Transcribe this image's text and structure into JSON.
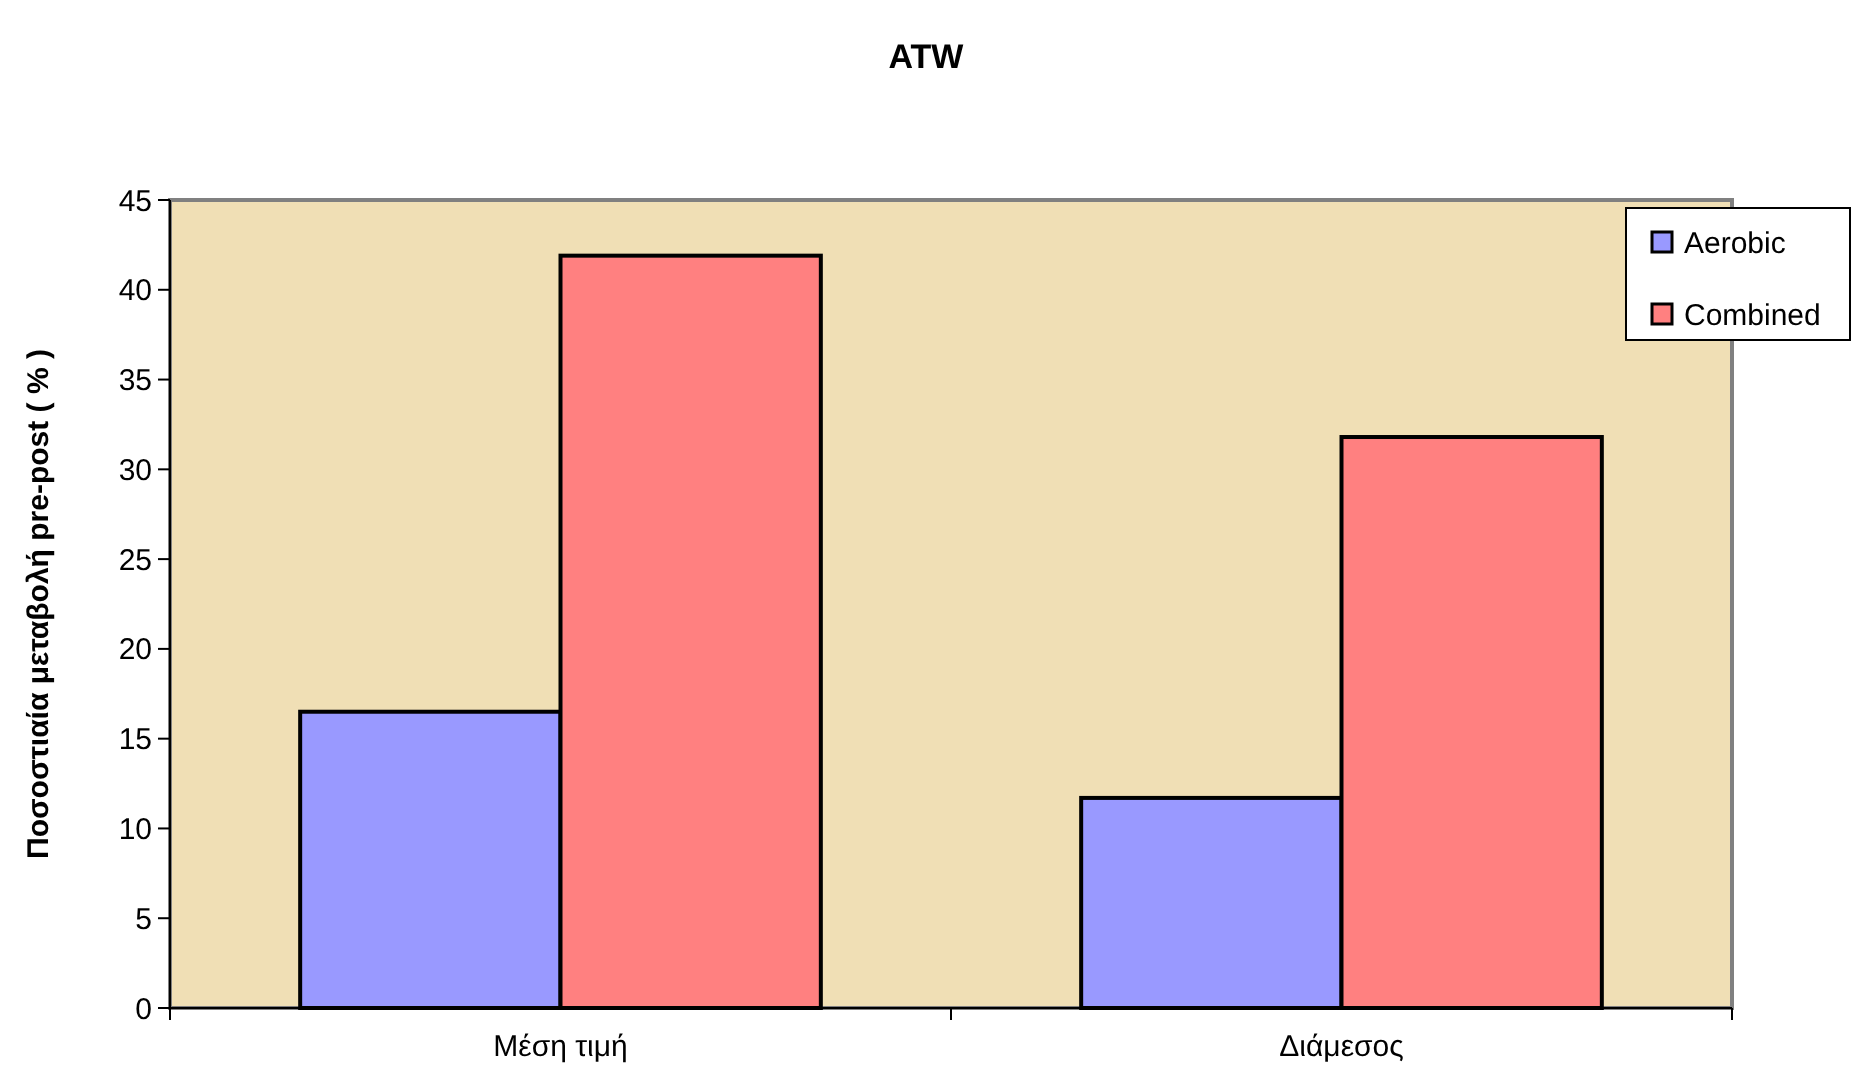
{
  "chart_data": {
    "type": "bar",
    "title": "ATW",
    "ylabel": "Ποσοστιαία μεταβολή pre-post ( % )",
    "categories": [
      "Μέση τιμή",
      "Διάμεσος"
    ],
    "series": [
      {
        "name": "Aerobic",
        "color": "#9999ff",
        "values": [
          16.5,
          11.7
        ]
      },
      {
        "name": "Combined",
        "color": "#ff8080",
        "values": [
          41.9,
          31.8
        ]
      }
    ],
    "ylim": [
      0,
      45
    ],
    "yticks": [
      0,
      5,
      10,
      15,
      20,
      25,
      30,
      35,
      40,
      45
    ],
    "grid": false,
    "legend": "top right"
  }
}
